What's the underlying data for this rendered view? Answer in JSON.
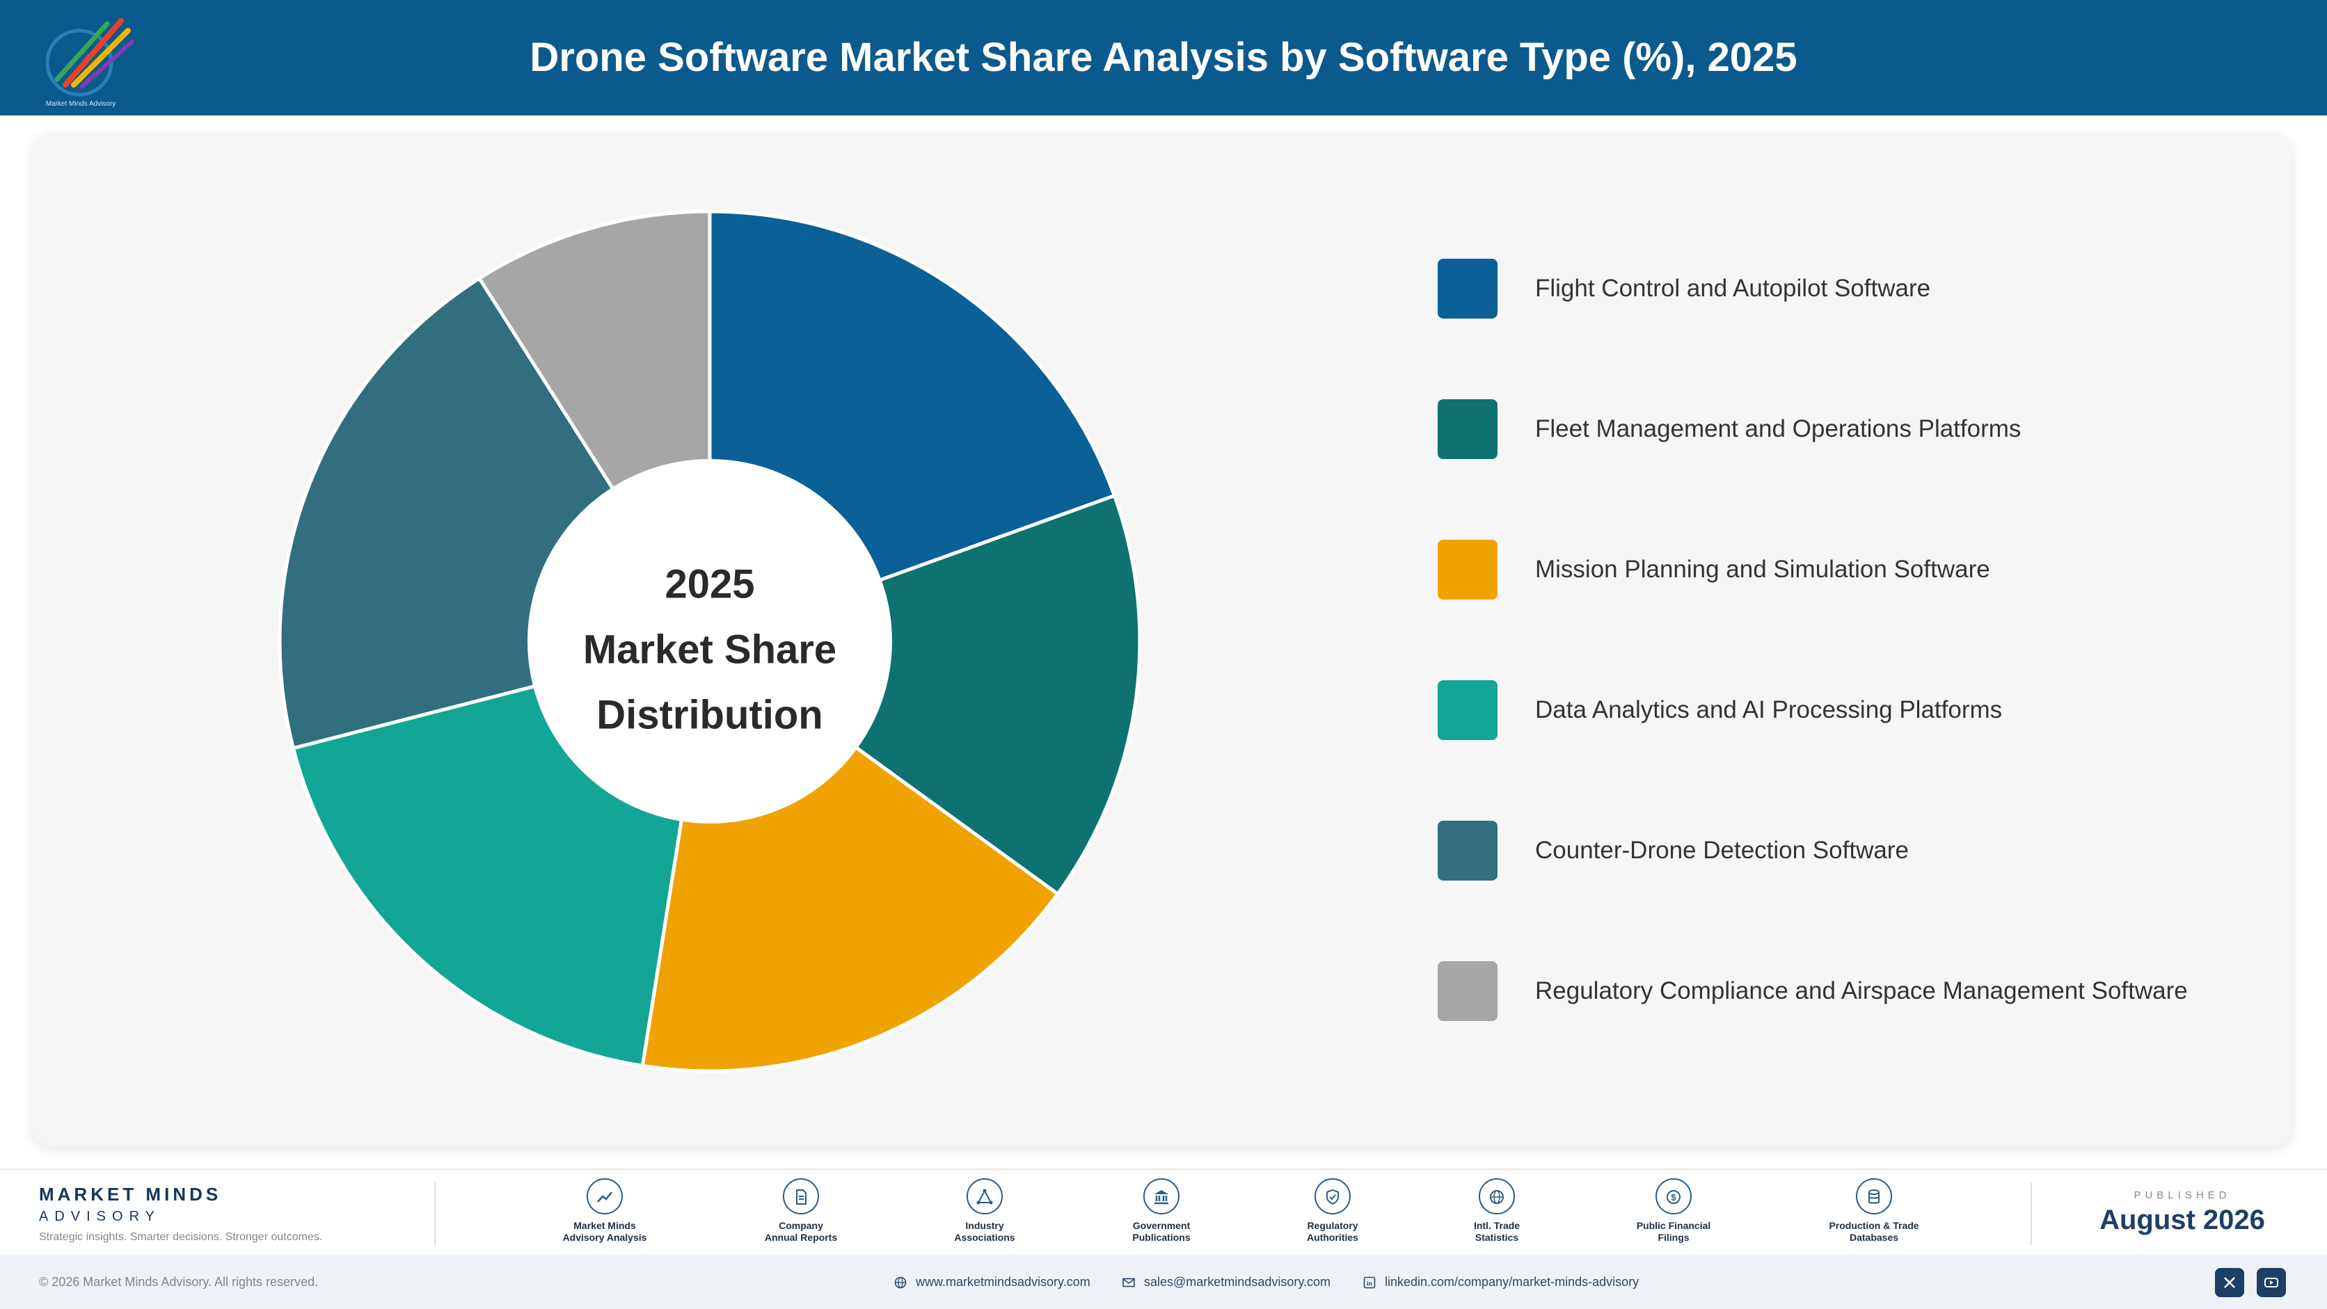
{
  "header": {
    "title": "Drone Software Market Share Analysis by Software Type (%), 2025",
    "logo_text": "Market Minds Advisory"
  },
  "chart_data": {
    "type": "pie",
    "style": "donut",
    "center_label": [
      "2025",
      "Market Share",
      "Distribution"
    ],
    "categories": [
      "Flight Control and Autopilot Software",
      "Fleet Management and Operations Platforms",
      "Mission Planning and Simulation Software",
      "Data Analytics and AI Processing Platforms",
      "Counter-Drone Detection Software",
      "Regulatory Compliance and Airspace Management Software"
    ],
    "values": [
      19.5,
      15.5,
      17.5,
      18.5,
      20.0,
      9.0
    ],
    "colors": [
      "#0b6097",
      "#0d7270",
      "#f0a300",
      "#13a595",
      "#306e80",
      "#a6a6a6"
    ],
    "legend_position": "right"
  },
  "footer": {
    "brand_name": "MARKET MINDS",
    "brand_sub": "ADVISORY",
    "tagline": "Strategic insights. Smarter decisions. Stronger outcomes.",
    "sources": [
      {
        "label": "Market Minds\nAdvisory Analysis",
        "icon": "chart-line-icon"
      },
      {
        "label": "Company\nAnnual Reports",
        "icon": "document-icon"
      },
      {
        "label": "Industry\nAssociations",
        "icon": "network-icon"
      },
      {
        "label": "Government\nPublications",
        "icon": "bank-icon"
      },
      {
        "label": "Regulatory\nAuthorities",
        "icon": "shield-icon"
      },
      {
        "label": "Intl. Trade\nStatistics",
        "icon": "globe-icon"
      },
      {
        "label": "Public Financial\nFilings",
        "icon": "dollar-icon"
      },
      {
        "label": "Production & Trade\nDatabases",
        "icon": "database-icon"
      }
    ],
    "published_label": "PUBLISHED",
    "published_date": "August 2026"
  },
  "bottom_bar": {
    "copyright": "© 2026 Market Minds Advisory. All rights reserved.",
    "website": "www.marketmindsadvisory.com",
    "email": "sales@marketmindsadvisory.com",
    "linkedin": "linkedin.com/company/market-minds-advisory",
    "social": [
      "x-icon",
      "youtube-icon"
    ]
  }
}
